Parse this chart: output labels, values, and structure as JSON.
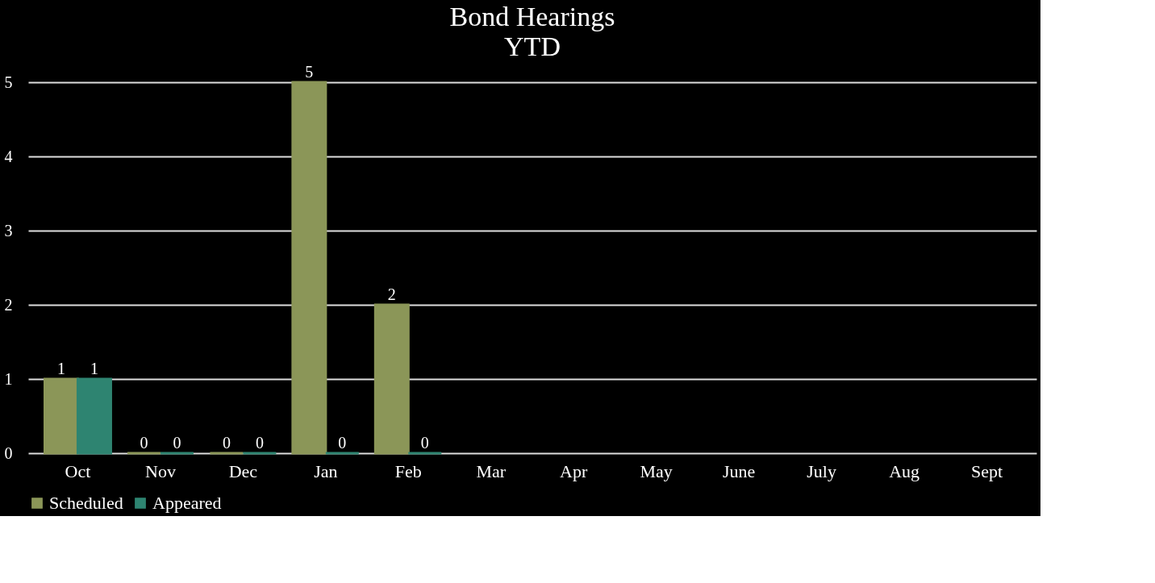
{
  "chart_data": {
    "type": "bar",
    "title": "Bond Hearings",
    "subtitle": "YTD",
    "categories": [
      "Oct",
      "Nov",
      "Dec",
      "Jan",
      "Feb",
      "Mar",
      "Apr",
      "May",
      "June",
      "July",
      "Aug",
      "Sept"
    ],
    "series": [
      {
        "name": "Scheduled",
        "color": "#8b9658",
        "values": [
          1,
          0,
          0,
          5,
          2,
          null,
          null,
          null,
          null,
          null,
          null,
          null
        ]
      },
      {
        "name": "Appeared",
        "color": "#2e8471",
        "values": [
          1,
          0,
          0,
          0,
          0,
          null,
          null,
          null,
          null,
          null,
          null,
          null
        ]
      }
    ],
    "ylim": [
      0,
      5
    ],
    "yticks": [
      0,
      1,
      2,
      3,
      4,
      5
    ],
    "grid": "y",
    "legend": "bottom",
    "data_labels": true
  }
}
